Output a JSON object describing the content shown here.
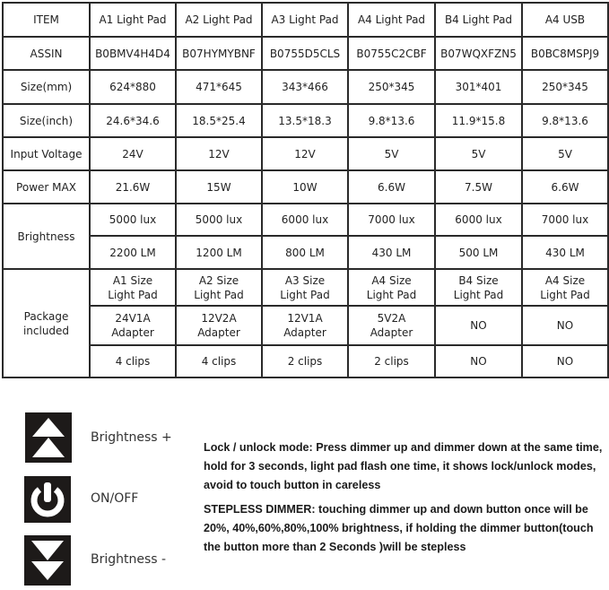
{
  "table": {
    "header": [
      "ITEM",
      "A1 Light Pad",
      "A2 Light Pad",
      "A3 Light Pad",
      "A4 Light Pad",
      "B4 Light Pad",
      "A4  USB"
    ],
    "rows": [
      {
        "label": "ASSIN",
        "values": [
          "B0BMV4H4D4",
          "B07HYMYBNF",
          "B0755D5CLS",
          "B0755C2CBF",
          "B07WQXFZN5",
          "B0BC8MSPJ9"
        ]
      },
      {
        "label": "Size(mm)",
        "values": [
          "624*880",
          "471*645",
          "343*466",
          "250*345",
          "301*401",
          "250*345"
        ]
      },
      {
        "label": "Size(inch)",
        "values": [
          "24.6*34.6",
          "18.5*25.4",
          "13.5*18.3",
          "9.8*13.6",
          "11.9*15.8",
          "9.8*13.6"
        ]
      },
      {
        "label": "Input Voltage",
        "values": [
          "24V",
          "12V",
          "12V",
          "5V",
          "5V",
          "5V"
        ]
      },
      {
        "label": "Power MAX",
        "values": [
          "21.6W",
          "15W",
          "10W",
          "6.6W",
          "7.5W",
          "6.6W"
        ]
      }
    ],
    "brightness": {
      "label": "Brightness",
      "lux": [
        "5000 lux",
        "5000 lux",
        "6000 lux",
        "7000 lux",
        "6000 lux",
        "7000 lux"
      ],
      "lm": [
        "2200 LM",
        "1200 LM",
        "800 LM",
        "430 LM",
        "500 LM",
        "430 LM"
      ]
    },
    "package": {
      "label": "Package included",
      "pad": [
        [
          "A1 Size",
          "Light Pad"
        ],
        [
          "A2 Size",
          "Light Pad"
        ],
        [
          "A3 Size",
          "Light Pad"
        ],
        [
          "A4 Size",
          "Light Pad"
        ],
        [
          "B4 Size",
          "Light Pad"
        ],
        [
          "A4 Size",
          "Light Pad"
        ]
      ],
      "adapter": [
        [
          "24V1A",
          "Adapter"
        ],
        [
          "12V2A",
          "Adapter"
        ],
        [
          "12V1A",
          "Adapter"
        ],
        [
          "5V2A",
          "Adapter"
        ],
        [
          "NO",
          ""
        ],
        [
          "NO",
          ""
        ]
      ],
      "clips": [
        "4 clips",
        "4 clips",
        "2 clips",
        "2 clips",
        "NO",
        "NO"
      ]
    }
  },
  "controls": [
    {
      "icon": "double-up-arrow-icon",
      "label": "Brightness +"
    },
    {
      "icon": "power-icon",
      "label": "ON/OFF"
    },
    {
      "icon": "double-down-arrow-icon",
      "label": "Brightness -"
    }
  ],
  "notes": [
    "Lock / unlock mode: Press dimmer up and dimmer down at the same time, hold for 3 seconds, light pad flash one time, it shows lock/unlock modes, avoid to touch button in careless",
    "STEPLESS DIMMER: touching dimmer up and down button once will be 20%, 40%,60%,80%,100% brightness, if holding the dimmer button(touch the button more than 2 Seconds )will be stepless"
  ]
}
